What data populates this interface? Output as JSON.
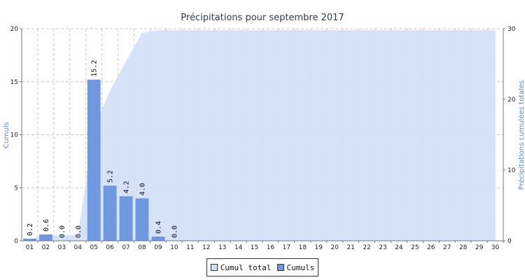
{
  "chart_data": {
    "type": "bar",
    "title": "Précipitations pour septembre 2017",
    "ylabel": "Cumuls",
    "y2label": "Précipitations cumulées totales",
    "categories": [
      "01",
      "02",
      "03",
      "04",
      "05",
      "06",
      "07",
      "08",
      "09",
      "10",
      "11",
      "12",
      "13",
      "14",
      "15",
      "16",
      "17",
      "18",
      "19",
      "20",
      "21",
      "22",
      "23",
      "24",
      "25",
      "26",
      "27",
      "28",
      "29",
      "30"
    ],
    "ylim": [
      0,
      20
    ],
    "y2lim": [
      0,
      30
    ],
    "yticks": [
      0,
      5,
      10,
      15,
      20
    ],
    "y2ticks": [
      0,
      10,
      20,
      30
    ],
    "grid": true,
    "legend_position": "bottom-center",
    "series": [
      {
        "name": "Cumuls",
        "type": "bar",
        "axis": "left",
        "color": "#6f98e0",
        "values": [
          0.2,
          0.6,
          0.0,
          0.0,
          15.2,
          5.2,
          4.2,
          4.0,
          0.4,
          0.0,
          0,
          0,
          0,
          0,
          0,
          0,
          0,
          0,
          0,
          0,
          0,
          0,
          0,
          0,
          0,
          0,
          0,
          0,
          0,
          0
        ],
        "labels": [
          "0.2",
          "0.6",
          "0.0",
          "0.0",
          "15.2",
          "5.2",
          "4.2",
          "4.0",
          "0.4",
          "0.0"
        ]
      },
      {
        "name": "Cumul total",
        "type": "area",
        "axis": "right",
        "color": "#d3e0f8",
        "values": [
          0.2,
          0.8,
          0.8,
          0.8,
          16.0,
          21.2,
          25.4,
          29.4,
          29.8,
          29.8,
          29.8,
          29.8,
          29.8,
          29.8,
          29.8,
          29.8,
          29.8,
          29.8,
          29.8,
          29.8,
          29.8,
          29.8,
          29.8,
          29.8,
          29.8,
          29.8,
          29.8,
          29.8,
          29.8,
          29.8
        ]
      }
    ]
  },
  "legend": {
    "items": [
      {
        "label": "Cumul total",
        "color": "#d3e0f8"
      },
      {
        "label": "Cumuls",
        "color": "#6f98e0"
      }
    ]
  }
}
